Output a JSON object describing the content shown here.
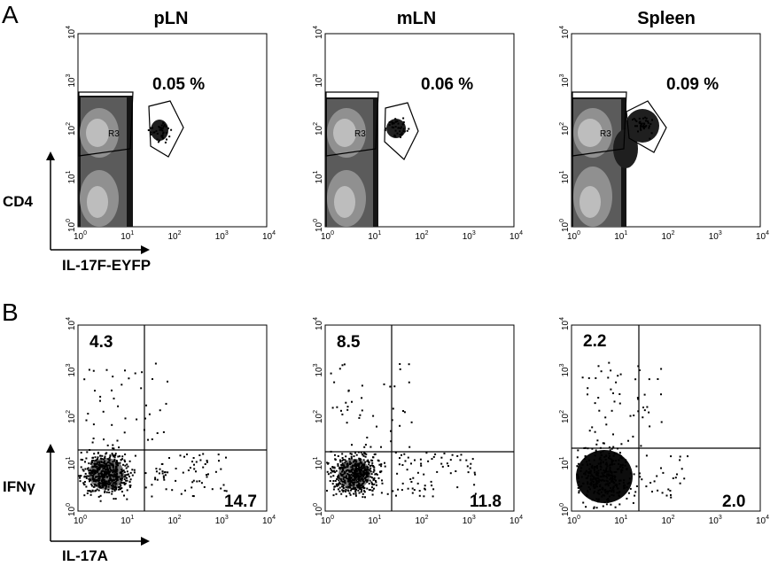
{
  "figure": {
    "panel_a": {
      "letter": "A",
      "y_axis_label": "CD4",
      "x_axis_label": "IL-17F-EYFP",
      "gate_label": "R3",
      "plots": [
        {
          "title": "pLN",
          "percent": "0.05 %"
        },
        {
          "title": "mLN",
          "percent": "0.06 %"
        },
        {
          "title": "Spleen",
          "percent": "0.09 %"
        }
      ]
    },
    "panel_b": {
      "letter": "B",
      "y_axis_label": "IFNγ",
      "x_axis_label": "IL-17A",
      "plots": [
        {
          "upper_left": "4.3",
          "lower_right": "14.7"
        },
        {
          "upper_left": "8.5",
          "lower_right": "11.8"
        },
        {
          "upper_left": "2.2",
          "lower_right": "2.0"
        }
      ]
    },
    "tick_labels": [
      "10^0",
      "10^1",
      "10^2",
      "10^3",
      "10^4"
    ]
  },
  "chart_data": [
    {
      "type": "scatter",
      "title": "pLN",
      "xlabel": "IL-17F-EYFP",
      "ylabel": "CD4",
      "xscale": "log",
      "yscale": "log",
      "xlim": [
        1,
        10000
      ],
      "ylim": [
        1,
        10000
      ],
      "annotations": [
        "0.05 %",
        "R3"
      ]
    },
    {
      "type": "scatter",
      "title": "mLN",
      "xlabel": "IL-17F-EYFP",
      "ylabel": "CD4",
      "xscale": "log",
      "yscale": "log",
      "xlim": [
        1,
        10000
      ],
      "ylim": [
        1,
        10000
      ],
      "annotations": [
        "0.06 %",
        "R3"
      ]
    },
    {
      "type": "scatter",
      "title": "Spleen",
      "xlabel": "IL-17F-EYFP",
      "ylabel": "CD4",
      "xscale": "log",
      "yscale": "log",
      "xlim": [
        1,
        10000
      ],
      "ylim": [
        1,
        10000
      ],
      "annotations": [
        "0.09 %",
        "R3"
      ]
    },
    {
      "type": "scatter",
      "xlabel": "IL-17A",
      "ylabel": "IFNγ",
      "xscale": "log",
      "yscale": "log",
      "xlim": [
        1,
        10000
      ],
      "ylim": [
        1,
        10000
      ],
      "quadrant_percentages": {
        "upper_left": 4.3,
        "lower_right": 14.7
      }
    },
    {
      "type": "scatter",
      "xlabel": "IL-17A",
      "ylabel": "IFNγ",
      "xscale": "log",
      "yscale": "log",
      "xlim": [
        1,
        10000
      ],
      "ylim": [
        1,
        10000
      ],
      "quadrant_percentages": {
        "upper_left": 8.5,
        "lower_right": 11.8
      }
    },
    {
      "type": "scatter",
      "xlabel": "IL-17A",
      "ylabel": "IFNγ",
      "xscale": "log",
      "yscale": "log",
      "xlim": [
        1,
        10000
      ],
      "ylim": [
        1,
        10000
      ],
      "quadrant_percentages": {
        "upper_left": 2.2,
        "lower_right": 2.0
      }
    }
  ]
}
